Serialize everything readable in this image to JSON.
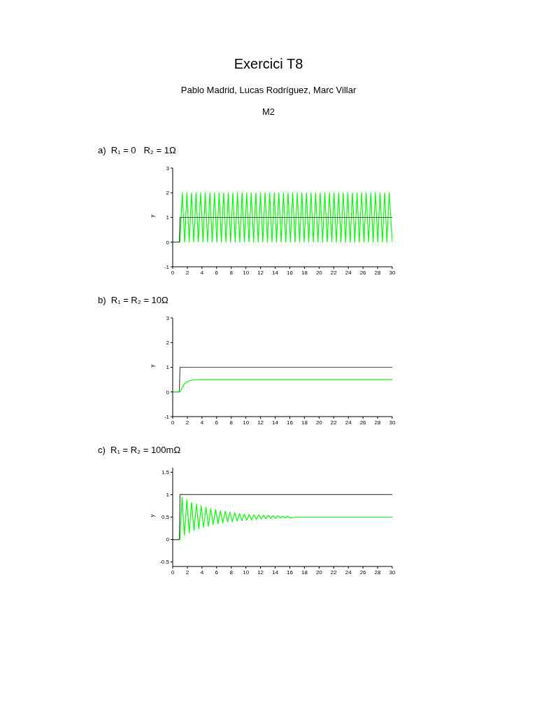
{
  "chart_data": [
    {
      "type": "line",
      "title": "a)  R₁ = 0   R₂ = 1Ω",
      "annotations": [
        "Exercici T8",
        "Pablo Madrid, Lucas Rodríguez, Marc Villar",
        "M2"
      ],
      "ylabel": "y",
      "xlim": [
        0,
        30
      ],
      "xticks": [
        0,
        2,
        4,
        6,
        8,
        10,
        12,
        14,
        16,
        18,
        20,
        22,
        24,
        26,
        28,
        30
      ],
      "ylim": [
        -1,
        3
      ],
      "yticks": [
        -1,
        0,
        1,
        2,
        3
      ],
      "series": [
        {
          "color": "#00ff00",
          "x": [
            0,
            1,
            1.31,
            1.63,
            1.94,
            2.26,
            2.57,
            2.88,
            3.19,
            3.51,
            3.82,
            4.14,
            4.45,
            4.77,
            5.08,
            5.4,
            5.71,
            6.03,
            6.34,
            6.65,
            6.96,
            7.28,
            7.59,
            7.91,
            8.22,
            8.54,
            8.85,
            9.17,
            9.48,
            9.8,
            10.11,
            10.42,
            10.73,
            11.05,
            11.36,
            11.68,
            11.99,
            12.31,
            12.62,
            12.94,
            13.25,
            13.57,
            13.88,
            14.19,
            14.5,
            14.82,
            15.13,
            15.45,
            15.76,
            16.08,
            16.39,
            16.71,
            17.02,
            17.34,
            17.65,
            17.96,
            18.27,
            18.59,
            18.9,
            19.22,
            19.53,
            19.85,
            20.16,
            20.48,
            20.79,
            21.11,
            21.42,
            21.73,
            22.04,
            22.36,
            22.67,
            22.99,
            23.3,
            23.62,
            23.93,
            24.25,
            24.56,
            24.88,
            25.19,
            25.5,
            25.81,
            26.13,
            26.44,
            26.76,
            27.07,
            27.39,
            27.7,
            28.02,
            28.33,
            28.65,
            28.96,
            29.27,
            29.58,
            30
          ],
          "values": [
            0,
            0,
            2,
            0,
            2,
            0,
            2,
            0,
            2,
            0,
            2,
            0,
            2,
            0,
            2,
            0,
            2,
            0,
            2,
            0,
            2,
            0,
            2,
            0,
            2,
            0,
            2,
            0,
            2,
            0,
            2,
            0,
            2,
            0,
            2,
            0,
            2,
            0,
            2,
            0,
            2,
            0,
            2,
            0,
            2,
            0,
            2,
            0,
            2,
            0,
            2,
            0,
            2,
            0,
            2,
            0,
            2,
            0,
            2,
            0,
            2,
            0,
            2,
            0,
            2,
            0,
            2,
            0,
            2,
            0,
            2,
            0,
            2,
            0,
            2,
            0,
            2,
            0,
            2,
            0,
            2,
            0,
            2,
            0,
            2,
            0,
            2,
            0,
            2,
            0,
            2,
            0,
            2,
            0
          ]
        },
        {
          "color": "#4d4d4d",
          "x": [
            0,
            0.9,
            1,
            30
          ],
          "values": [
            0,
            0,
            1,
            1
          ]
        }
      ]
    },
    {
      "type": "line",
      "title": "b)  R₁ = R₂ = 10Ω",
      "ylabel": "y",
      "xlim": [
        0,
        30
      ],
      "xticks": [
        0,
        2,
        4,
        6,
        8,
        10,
        12,
        14,
        16,
        18,
        20,
        22,
        24,
        26,
        28,
        30
      ],
      "ylim": [
        -1,
        3
      ],
      "yticks": [
        -1,
        0,
        1,
        2,
        3
      ],
      "series": [
        {
          "color": "#4d4d4d",
          "x": [
            0,
            0.9,
            1,
            30
          ],
          "values": [
            0,
            0,
            1,
            1
          ]
        },
        {
          "color": "#00ff00",
          "x": [
            0,
            1,
            1.1,
            1.25,
            1.5,
            1.75,
            2,
            2.5,
            3,
            4,
            30
          ],
          "values": [
            0,
            0,
            0.05,
            0.15,
            0.28,
            0.37,
            0.42,
            0.47,
            0.49,
            0.5,
            0.5
          ]
        }
      ]
    },
    {
      "type": "line",
      "title": "c)  R₁ = R₂ = 100mΩ",
      "ylabel": "y",
      "xlim": [
        0,
        30
      ],
      "xticks": [
        0,
        2,
        4,
        6,
        8,
        10,
        12,
        14,
        16,
        18,
        20,
        22,
        24,
        26,
        28,
        30
      ],
      "ylim": [
        -0.6,
        1.6
      ],
      "yticks": [
        -0.5,
        0,
        0.5,
        1,
        1.5
      ],
      "series": [
        {
          "color": "#00ff00",
          "x": [
            0,
            1,
            1.27,
            1.6,
            1.93,
            2.26,
            2.58,
            2.91,
            3.24,
            3.57,
            3.89,
            4.22,
            4.55,
            4.88,
            5.2,
            5.53,
            5.86,
            6.19,
            6.51,
            6.84,
            7.17,
            7.5,
            7.82,
            8.15,
            8.48,
            8.81,
            9.13,
            9.46,
            9.79,
            10.12,
            10.44,
            10.77,
            11.1,
            11.43,
            11.75,
            12.08,
            12.41,
            12.74,
            13.06,
            13.39,
            13.72,
            14.05,
            14.37,
            14.7,
            15.03,
            15.36,
            15.68,
            16.01,
            17,
            30
          ],
          "values": [
            0,
            0,
            0.94,
            0.1,
            0.88,
            0.15,
            0.83,
            0.2,
            0.79,
            0.24,
            0.75,
            0.27,
            0.72,
            0.3,
            0.69,
            0.33,
            0.67,
            0.35,
            0.64,
            0.37,
            0.63,
            0.39,
            0.61,
            0.4,
            0.6,
            0.41,
            0.58,
            0.42,
            0.57,
            0.43,
            0.56,
            0.44,
            0.55,
            0.45,
            0.55,
            0.46,
            0.54,
            0.46,
            0.54,
            0.47,
            0.53,
            0.47,
            0.53,
            0.48,
            0.52,
            0.48,
            0.52,
            0.48,
            0.5,
            0.5
          ]
        },
        {
          "color": "#4d4d4d",
          "x": [
            0,
            0.9,
            1,
            30
          ],
          "values": [
            0,
            0,
            1,
            1
          ]
        }
      ]
    }
  ]
}
